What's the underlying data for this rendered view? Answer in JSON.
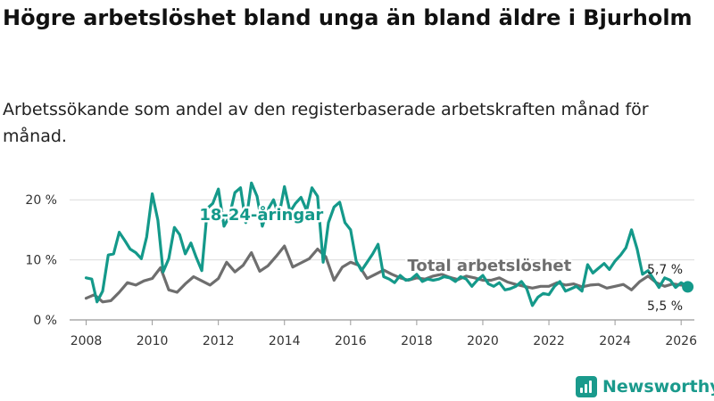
{
  "title": "Högre arbetslöshet bland unga än bland äldre i Bjurholm",
  "subtitle": "Arbetssökande som andel av den registerbaserade arbetskraften månad för månad.",
  "brand": {
    "name": "Newsworthy",
    "icon": "bar-chart-icon",
    "color": "#1a9a8c"
  },
  "chart_data": {
    "type": "line",
    "title": "Högre arbetslöshet bland unga än bland äldre i Bjurholm",
    "subtitle": "Arbetssökande som andel av den registerbaserade arbetskraften månad för månad.",
    "xlabel": "",
    "ylabel": "",
    "xlim": [
      2007.5,
      2026.4
    ],
    "ylim": [
      0,
      23
    ],
    "yticks": [
      0,
      10,
      20
    ],
    "ytick_labels": [
      "0 %",
      "10 %",
      "20 %"
    ],
    "xticks": [
      2008,
      2010,
      2012,
      2014,
      2016,
      2018,
      2020,
      2022,
      2024,
      2026
    ],
    "xtick_labels": [
      "2008",
      "2010",
      "2012",
      "2014",
      "2016",
      "2018",
      "2020",
      "2022",
      "2024",
      "2026"
    ],
    "grid": true,
    "series": [
      {
        "name": "Total arbetslöshet",
        "label": "Total arbetslöshet",
        "color": "#6e6e6e",
        "end_label": "5,7 %",
        "x": [
          2008.0,
          2008.25,
          2008.5,
          2008.75,
          2009.0,
          2009.25,
          2009.5,
          2009.75,
          2010.0,
          2010.25,
          2010.5,
          2010.75,
          2011.0,
          2011.25,
          2011.5,
          2011.75,
          2012.0,
          2012.25,
          2012.5,
          2012.75,
          2013.0,
          2013.25,
          2013.5,
          2013.75,
          2014.0,
          2014.25,
          2014.5,
          2014.75,
          2015.0,
          2015.25,
          2015.5,
          2015.75,
          2016.0,
          2016.25,
          2016.5,
          2016.75,
          2017.0,
          2017.25,
          2017.5,
          2017.75,
          2018.0,
          2018.25,
          2018.5,
          2018.75,
          2019.0,
          2019.25,
          2019.5,
          2019.75,
          2020.0,
          2020.25,
          2020.5,
          2020.75,
          2021.0,
          2021.25,
          2021.5,
          2021.75,
          2022.0,
          2022.25,
          2022.5,
          2022.75,
          2023.0,
          2023.25,
          2023.5,
          2023.75,
          2024.0,
          2024.25,
          2024.5,
          2024.75,
          2025.0,
          2025.25,
          2025.5,
          2025.75,
          2026.0,
          2026.2
        ],
        "values": [
          3.6,
          4.2,
          3.0,
          3.2,
          4.6,
          6.2,
          5.8,
          6.5,
          6.9,
          8.7,
          5.0,
          4.6,
          6.0,
          7.2,
          6.5,
          5.8,
          6.9,
          9.6,
          8.0,
          9.1,
          11.2,
          8.1,
          9.0,
          10.6,
          12.3,
          8.8,
          9.5,
          10.2,
          11.8,
          10.5,
          6.6,
          8.8,
          9.6,
          9.1,
          6.9,
          7.6,
          8.3,
          7.6,
          7.0,
          6.6,
          7.0,
          6.8,
          7.3,
          7.6,
          7.1,
          6.7,
          7.3,
          7.0,
          6.6,
          6.6,
          7.0,
          6.3,
          5.9,
          5.6,
          5.3,
          5.6,
          5.6,
          6.2,
          5.8,
          6.0,
          5.5,
          5.8,
          5.9,
          5.3,
          5.6,
          5.9,
          5.0,
          6.4,
          7.3,
          6.2,
          5.6,
          6.0,
          5.8,
          5.7
        ]
      },
      {
        "name": "18-24-åringar",
        "label": "18-24-åringar",
        "color": "#14998a",
        "end_label": "5,5 %",
        "x": [
          2008.0,
          2008.17,
          2008.33,
          2008.5,
          2008.67,
          2008.83,
          2009.0,
          2009.17,
          2009.33,
          2009.5,
          2009.67,
          2009.83,
          2010.0,
          2010.17,
          2010.33,
          2010.5,
          2010.67,
          2010.83,
          2011.0,
          2011.17,
          2011.33,
          2011.5,
          2011.67,
          2011.83,
          2012.0,
          2012.17,
          2012.33,
          2012.5,
          2012.67,
          2012.83,
          2013.0,
          2013.17,
          2013.33,
          2013.5,
          2013.67,
          2013.83,
          2014.0,
          2014.17,
          2014.33,
          2014.5,
          2014.67,
          2014.83,
          2015.0,
          2015.17,
          2015.33,
          2015.5,
          2015.67,
          2015.83,
          2016.0,
          2016.17,
          2016.33,
          2016.5,
          2016.67,
          2016.83,
          2017.0,
          2017.17,
          2017.33,
          2017.5,
          2017.67,
          2017.83,
          2018.0,
          2018.17,
          2018.33,
          2018.5,
          2018.67,
          2018.83,
          2019.0,
          2019.17,
          2019.33,
          2019.5,
          2019.67,
          2019.83,
          2020.0,
          2020.17,
          2020.33,
          2020.5,
          2020.67,
          2020.83,
          2021.0,
          2021.17,
          2021.33,
          2021.5,
          2021.67,
          2021.83,
          2022.0,
          2022.17,
          2022.33,
          2022.5,
          2022.67,
          2022.83,
          2023.0,
          2023.17,
          2023.33,
          2023.5,
          2023.67,
          2023.83,
          2024.0,
          2024.17,
          2024.33,
          2024.5,
          2024.67,
          2024.83,
          2025.0,
          2025.17,
          2025.33,
          2025.5,
          2025.67,
          2025.83,
          2026.0,
          2026.2
        ],
        "values": [
          7.0,
          6.8,
          3.0,
          4.8,
          10.8,
          11.0,
          14.6,
          13.2,
          11.8,
          11.2,
          10.2,
          13.8,
          21.0,
          16.6,
          8.0,
          10.2,
          15.4,
          14.2,
          11.0,
          12.8,
          10.4,
          8.2,
          18.6,
          19.4,
          21.8,
          15.6,
          17.2,
          21.2,
          22.0,
          16.2,
          22.8,
          20.6,
          15.6,
          18.4,
          20.0,
          17.2,
          22.2,
          18.0,
          19.4,
          20.4,
          18.2,
          22.0,
          20.6,
          9.6,
          16.2,
          18.8,
          19.6,
          16.2,
          15.0,
          9.8,
          8.2,
          9.6,
          11.0,
          12.6,
          7.2,
          6.8,
          6.2,
          7.4,
          6.6,
          6.8,
          7.6,
          6.4,
          6.8,
          6.6,
          6.8,
          7.2,
          7.0,
          6.4,
          7.2,
          6.8,
          5.6,
          6.6,
          7.4,
          6.0,
          5.6,
          6.2,
          5.0,
          5.2,
          5.6,
          6.4,
          5.2,
          2.4,
          3.8,
          4.4,
          4.2,
          5.6,
          6.4,
          4.8,
          5.2,
          5.6,
          4.8,
          9.2,
          7.8,
          8.6,
          9.4,
          8.4,
          9.8,
          10.8,
          12.0,
          15.0,
          11.8,
          7.6,
          8.2,
          6.8,
          5.4,
          7.0,
          6.6,
          5.4,
          6.2,
          5.5
        ]
      }
    ]
  }
}
